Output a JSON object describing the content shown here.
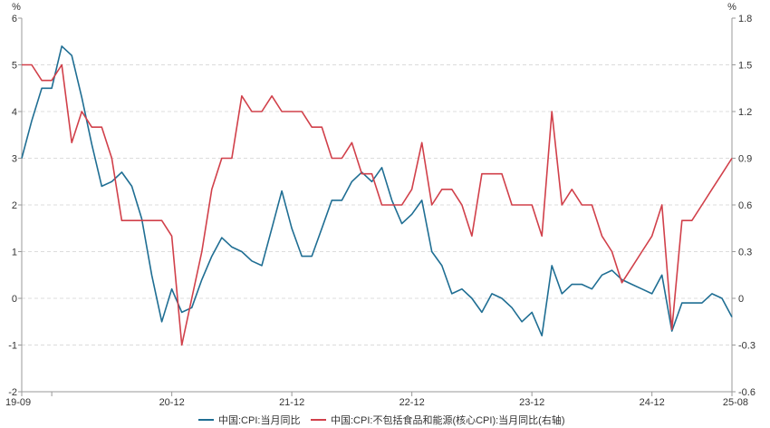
{
  "chart_data": {
    "type": "line",
    "left_axis": {
      "unit": "%",
      "ylim": [
        -2,
        6
      ],
      "ticks": [
        "6",
        "5",
        "4",
        "3",
        "2",
        "1",
        "0",
        "-1",
        "-2"
      ]
    },
    "right_axis": {
      "unit": "%",
      "ylim": [
        -0.6,
        1.8
      ],
      "ticks": [
        "1.8",
        "1.5",
        "1.2",
        "0.9",
        "0.6",
        "0.3",
        "0",
        "-0.3",
        "-0.6"
      ]
    },
    "x_ticks": [
      "19-09",
      "20-12",
      "21-12",
      "22-12",
      "23-12",
      "24-12",
      "25-08"
    ],
    "grid": "horizontal dashed",
    "legend_position": "bottom",
    "series": [
      {
        "name": "中国:CPI:当月同比",
        "axis": "left",
        "color": "#1f6e93",
        "start_month": "2019-09",
        "values": [
          3.0,
          3.8,
          4.5,
          4.5,
          5.4,
          5.2,
          4.3,
          3.3,
          2.4,
          2.5,
          2.7,
          2.4,
          1.7,
          0.5,
          -0.5,
          0.2,
          -0.3,
          -0.2,
          0.4,
          0.9,
          1.3,
          1.1,
          1.0,
          0.8,
          0.7,
          1.5,
          2.3,
          1.5,
          0.9,
          0.9,
          1.5,
          2.1,
          2.1,
          2.5,
          2.7,
          2.5,
          2.8,
          2.1,
          1.6,
          1.8,
          2.1,
          1.0,
          0.7,
          0.1,
          0.2,
          0.0,
          -0.3,
          0.1,
          0.0,
          -0.2,
          -0.5,
          -0.3,
          -0.8,
          0.7,
          0.1,
          0.3,
          0.3,
          0.2,
          0.5,
          0.6,
          0.4,
          0.3,
          0.2,
          0.1,
          0.5,
          -0.7,
          -0.1,
          -0.1,
          -0.1,
          0.1,
          0.0,
          -0.4
        ]
      },
      {
        "name": "中国:CPI:不包括食品和能源(核心CPI):当月同比(右轴)",
        "axis": "right",
        "color": "#d1404a",
        "start_month": "2019-09",
        "values": [
          1.5,
          1.5,
          1.4,
          1.4,
          1.5,
          1.0,
          1.2,
          1.1,
          1.1,
          0.9,
          0.5,
          0.5,
          0.5,
          0.5,
          0.5,
          0.4,
          -0.3,
          0.0,
          0.3,
          0.7,
          0.9,
          0.9,
          1.3,
          1.2,
          1.2,
          1.3,
          1.2,
          1.2,
          1.2,
          1.1,
          1.1,
          0.9,
          0.9,
          1.0,
          0.8,
          0.8,
          0.6,
          0.6,
          0.6,
          0.7,
          1.0,
          0.6,
          0.7,
          0.7,
          0.6,
          0.4,
          0.8,
          0.8,
          0.8,
          0.6,
          0.6,
          0.6,
          0.4,
          1.2,
          0.6,
          0.7,
          0.6,
          0.6,
          0.4,
          0.3,
          0.1,
          0.2,
          0.3,
          0.4,
          0.6,
          -0.2,
          0.5,
          0.5,
          0.6,
          0.7,
          0.8,
          0.9
        ]
      }
    ]
  }
}
